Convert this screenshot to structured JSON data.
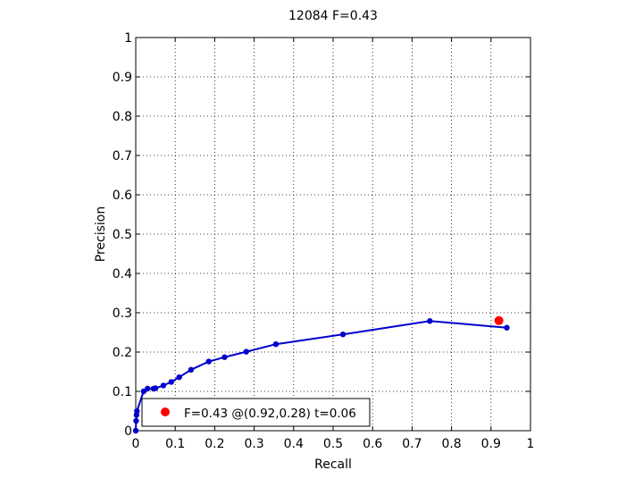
{
  "chart_data": {
    "type": "line",
    "title": "12084 F=0.43",
    "xlabel": "Recall",
    "ylabel": "Precision",
    "xlim": [
      0,
      1
    ],
    "ylim": [
      0,
      1
    ],
    "grid": true,
    "x_ticks": [
      "0",
      "0.1",
      "0.2",
      "0.3",
      "0.4",
      "0.5",
      "0.6",
      "0.7",
      "0.8",
      "0.9",
      "1"
    ],
    "y_ticks": [
      "0",
      "0.1",
      "0.2",
      "0.3",
      "0.4",
      "0.5",
      "0.6",
      "0.7",
      "0.8",
      "0.9",
      "1"
    ],
    "series": [
      {
        "color": "#0000cc",
        "points": [
          [
            0.0,
            0.0
          ],
          [
            0.001,
            0.025
          ],
          [
            0.002,
            0.04
          ],
          [
            0.003,
            0.05
          ],
          [
            0.02,
            0.1
          ],
          [
            0.03,
            0.107
          ],
          [
            0.045,
            0.107
          ],
          [
            0.05,
            0.108
          ],
          [
            0.07,
            0.115
          ],
          [
            0.09,
            0.124
          ],
          [
            0.11,
            0.136
          ],
          [
            0.14,
            0.155
          ],
          [
            0.185,
            0.176
          ],
          [
            0.225,
            0.187
          ],
          [
            0.28,
            0.201
          ],
          [
            0.355,
            0.22
          ],
          [
            0.525,
            0.245
          ],
          [
            0.745,
            0.279
          ],
          [
            0.94,
            0.262
          ]
        ]
      }
    ],
    "best_point": {
      "x": 0.92,
      "y": 0.28,
      "color": "#ff0000"
    },
    "legend": {
      "location": "bottom-left",
      "label": "F=0.43 @(0.92,0.28) t=0.06"
    }
  }
}
